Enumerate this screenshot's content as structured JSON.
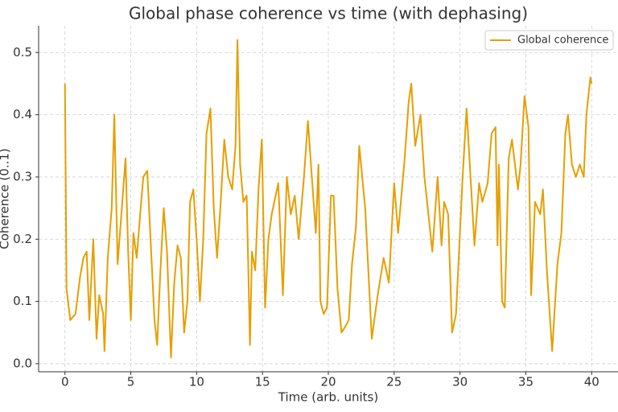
{
  "chart_data": {
    "type": "line",
    "title": "Global phase coherence vs time (with dephasing)",
    "xlabel": "Time (arb. units)",
    "ylabel": "Coherence (0..1)",
    "legend": "upper right",
    "grid": true,
    "xlim": [
      -2,
      42
    ],
    "ylim": [
      -0.013,
      0.543
    ],
    "xticks": [
      0,
      5,
      10,
      15,
      20,
      25,
      30,
      35,
      40
    ],
    "yticks": [
      {
        "value": 0,
        "label": "0.0"
      },
      0.1,
      0.2,
      0.3,
      0.4,
      0.5
    ],
    "x": [
      0,
      0.12,
      0.4,
      0.8,
      1.15,
      1.4,
      1.65,
      1.85,
      2.15,
      2.4,
      2.6,
      2.9,
      3.0,
      3.25,
      3.55,
      3.75,
      4.0,
      4.25,
      4.6,
      4.8,
      5.0,
      5.2,
      5.45,
      5.75,
      5.95,
      6.25,
      6.5,
      6.8,
      7.0,
      7.25,
      7.5,
      7.75,
      8.05,
      8.3,
      8.55,
      8.8,
      9.05,
      9.3,
      9.5,
      9.75,
      10.0,
      10.25,
      10.5,
      10.75,
      11.05,
      11.3,
      11.55,
      11.8,
      12.1,
      12.4,
      12.7,
      12.95,
      13.1,
      13.3,
      13.55,
      13.8,
      14.05,
      14.2,
      14.45,
      14.7,
      14.95,
      15.2,
      15.45,
      15.7,
      16.2,
      16.55,
      16.85,
      17.15,
      17.45,
      17.75,
      18.15,
      18.45,
      18.75,
      19.05,
      19.25,
      19.4,
      19.65,
      19.9,
      20.2,
      20.4,
      20.7,
      21.0,
      21.3,
      21.55,
      21.8,
      22.1,
      22.35,
      22.8,
      23.3,
      23.75,
      24.2,
      24.6,
      25.0,
      25.3,
      25.8,
      26.1,
      26.3,
      26.6,
      27.0,
      27.3,
      27.9,
      28.3,
      28.6,
      28.8,
      29.1,
      29.4,
      29.7,
      30.2,
      30.5,
      30.8,
      31.1,
      31.45,
      31.7,
      32.1,
      32.4,
      32.7,
      32.85,
      32.95,
      33.2,
      33.4,
      33.7,
      33.95,
      34.4,
      34.6,
      34.9,
      35.2,
      35.4,
      35.7,
      36.1,
      36.3,
      36.6,
      37.0,
      37.4,
      37.7,
      38.0,
      38.2,
      38.5,
      38.8,
      39.1,
      39.4,
      39.6,
      39.9,
      40.0
    ],
    "series": [
      {
        "name": "Global coherence",
        "color": "#e69f00",
        "values": [
          0.45,
          0.12,
          0.07,
          0.08,
          0.14,
          0.17,
          0.18,
          0.07,
          0.2,
          0.04,
          0.11,
          0.08,
          0.02,
          0.17,
          0.25,
          0.4,
          0.16,
          0.23,
          0.33,
          0.18,
          0.07,
          0.21,
          0.17,
          0.25,
          0.3,
          0.31,
          0.2,
          0.07,
          0.03,
          0.15,
          0.25,
          0.18,
          0.01,
          0.13,
          0.19,
          0.17,
          0.05,
          0.1,
          0.26,
          0.28,
          0.2,
          0.1,
          0.2,
          0.37,
          0.41,
          0.25,
          0.17,
          0.25,
          0.36,
          0.3,
          0.28,
          0.35,
          0.52,
          0.32,
          0.26,
          0.27,
          0.03,
          0.18,
          0.15,
          0.28,
          0.36,
          0.09,
          0.2,
          0.24,
          0.29,
          0.11,
          0.3,
          0.24,
          0.27,
          0.2,
          0.3,
          0.39,
          0.3,
          0.21,
          0.32,
          0.1,
          0.08,
          0.09,
          0.27,
          0.27,
          0.12,
          0.05,
          0.06,
          0.07,
          0.16,
          0.22,
          0.35,
          0.25,
          0.04,
          0.11,
          0.17,
          0.13,
          0.29,
          0.21,
          0.33,
          0.42,
          0.45,
          0.35,
          0.4,
          0.3,
          0.18,
          0.3,
          0.19,
          0.26,
          0.24,
          0.05,
          0.08,
          0.3,
          0.41,
          0.3,
          0.19,
          0.29,
          0.26,
          0.29,
          0.37,
          0.38,
          0.19,
          0.32,
          0.1,
          0.09,
          0.33,
          0.36,
          0.28,
          0.32,
          0.43,
          0.38,
          0.11,
          0.26,
          0.24,
          0.28,
          0.15,
          0.02,
          0.16,
          0.21,
          0.37,
          0.4,
          0.32,
          0.3,
          0.32,
          0.3,
          0.4,
          0.46,
          0.45
        ]
      }
    ]
  }
}
